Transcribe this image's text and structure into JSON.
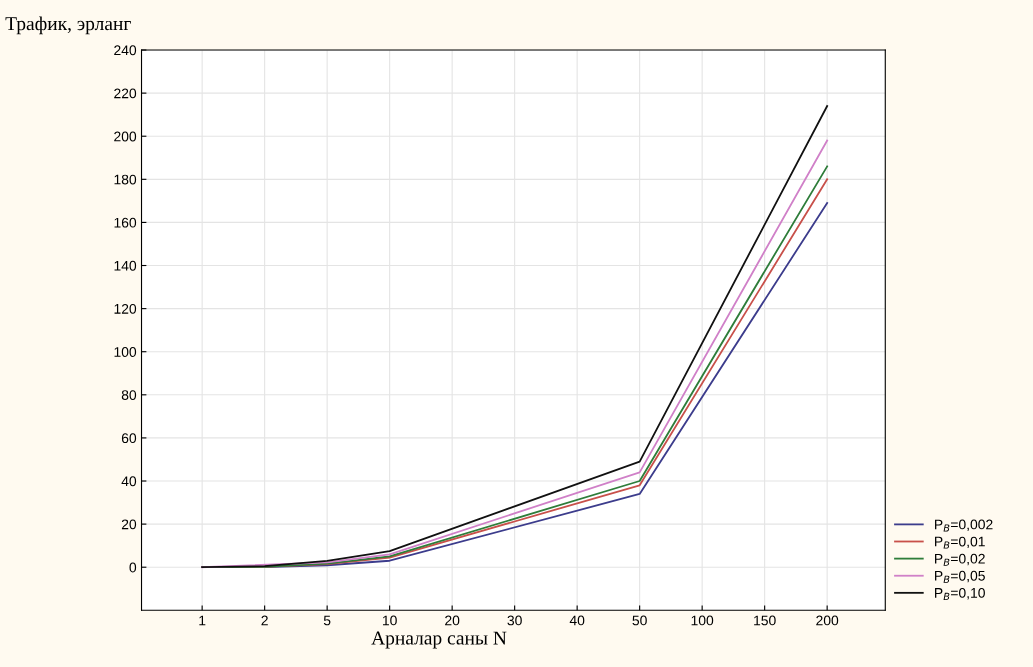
{
  "chart_data": {
    "type": "line",
    "ylabel": "Трафик, эрланг",
    "xlabel": "Арналар саны N",
    "categories": [
      "1",
      "2",
      "5",
      "10",
      "20",
      "30",
      "40",
      "50",
      "100",
      "150",
      "200"
    ],
    "ylim": [
      -20,
      240
    ],
    "yticks": [
      0,
      20,
      40,
      60,
      80,
      100,
      120,
      140,
      160,
      180,
      200,
      220,
      240
    ],
    "grid": true,
    "legend": "bottom right",
    "marker": "none",
    "line_style": "solid",
    "series": [
      {
        "name": "P$_{B}$=0,002",
        "color": "#3c3c8c",
        "values": [
          0,
          0.1,
          0.9,
          3,
          null,
          null,
          null,
          34,
          null,
          null,
          169
        ]
      },
      {
        "name": "P$_{B}$=0,01",
        "color": "#c8504a",
        "values": [
          0,
          0.2,
          1.4,
          4.5,
          null,
          null,
          null,
          38,
          null,
          null,
          180
        ]
      },
      {
        "name": "P$_{B}$=0,02",
        "color": "#2e7d3a",
        "values": [
          0,
          0.2,
          1.7,
          5,
          null,
          null,
          null,
          40,
          null,
          null,
          186
        ]
      },
      {
        "name": "P$_{B}$=0,05",
        "color": "#d080c8",
        "values": [
          0,
          null,
          2.2,
          6,
          null,
          null,
          null,
          44,
          null,
          null,
          198
        ]
      },
      {
        "name": "P$_{B}$=0,10",
        "color": "#111111",
        "values": [
          0,
          0.5,
          2.9,
          7.5,
          null,
          null,
          null,
          49,
          null,
          null,
          214
        ]
      }
    ]
  }
}
